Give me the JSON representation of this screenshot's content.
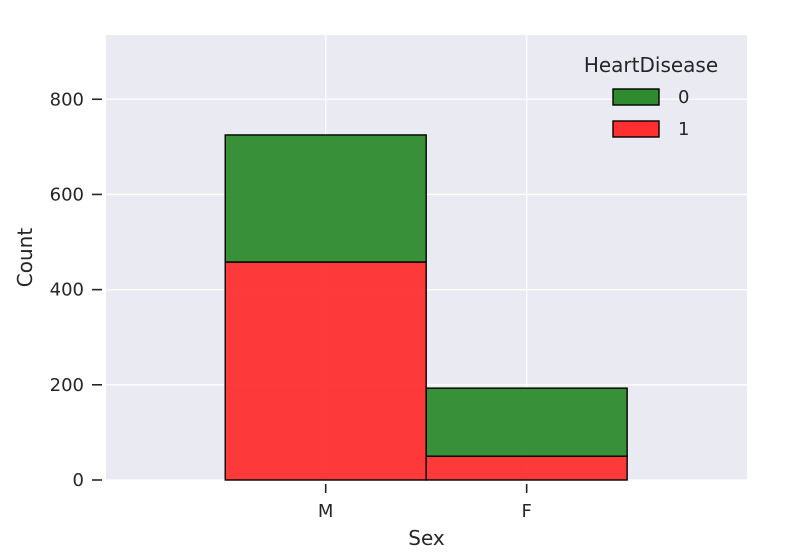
{
  "chart_data": {
    "type": "bar",
    "stacked": true,
    "categories": [
      "M",
      "F"
    ],
    "xlabel": "Sex",
    "ylabel": "Count",
    "ylim": [
      0,
      935
    ],
    "yticks": [
      0,
      200,
      400,
      600,
      800
    ],
    "grid": true,
    "legend": {
      "title": "HeartDisease",
      "placement": "top-right"
    },
    "series": [
      {
        "name": "1",
        "values": [
          458,
          50
        ],
        "color": "#ff2f2f"
      },
      {
        "name": "0",
        "values": [
          267,
          143
        ],
        "color": "#2e8b2e"
      }
    ],
    "legend_order": [
      "0",
      "1"
    ],
    "background": "#eaeaf2",
    "gridline_color": "#ffffff"
  }
}
